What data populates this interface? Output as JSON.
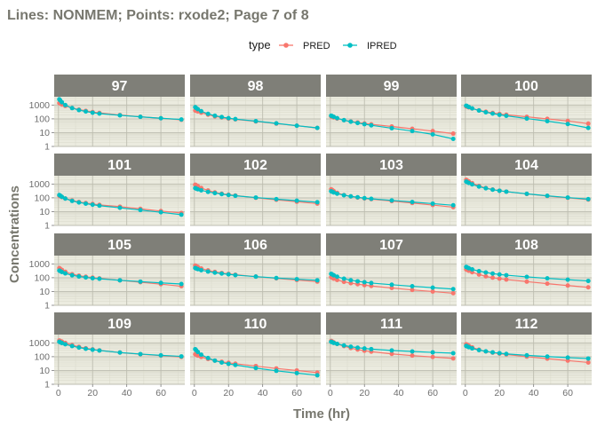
{
  "title": "Lines: NONMEM; Points: rxode2; Page 7 of 8",
  "xlabel": "Time (hr)",
  "ylabel": "Concentrations",
  "legend": {
    "title": "type",
    "position": "top-center",
    "items": [
      {
        "name": "PRED",
        "color": "#f8766d"
      },
      {
        "name": "IPRED",
        "color": "#00bfc4"
      }
    ]
  },
  "colors": {
    "strip_bg": "#7f7f78",
    "panel_bg": "#ebebdf",
    "grid_major": "#bdbdb0",
    "grid_minor": "#d9d9cb",
    "pred": "#f8766d",
    "ipred": "#00bfc4"
  },
  "chart_data": {
    "type": "line",
    "facet": "ID",
    "layout": {
      "rows": 4,
      "cols": 4
    },
    "x_label": "Time (hr)",
    "y_label": "Concentrations",
    "x_scale": "linear",
    "y_scale": "log10",
    "xlim": [
      -2.5,
      74
    ],
    "ylim": [
      1,
      4000
    ],
    "x_ticks": [
      0,
      20,
      40,
      60
    ],
    "y_ticks": [
      1,
      10,
      100,
      1000
    ],
    "y_tick_labels": [
      "1",
      "10",
      "100",
      "1000"
    ],
    "grid": true,
    "times": [
      0.5,
      1,
      2,
      4,
      8,
      12,
      16,
      20,
      24,
      36,
      48,
      60,
      72
    ],
    "panels": [
      {
        "id": "97",
        "series": [
          {
            "name": "PRED",
            "values": [
              1400,
              1300,
              1100,
              870,
              620,
              470,
              380,
              310,
              270,
              190,
              140,
              110,
              85
            ]
          },
          {
            "name": "IPRED",
            "values": [
              2600,
              2200,
              1600,
              1000,
              600,
              430,
              340,
              280,
              240,
              180,
              140,
              110,
              90
            ]
          }
        ]
      },
      {
        "id": "98",
        "series": [
          {
            "name": "PRED",
            "values": [
              400,
              380,
              340,
              280,
              200,
              150,
              125,
              105,
              92,
              65,
              45,
              32,
              22
            ]
          },
          {
            "name": "IPRED",
            "values": [
              700,
              620,
              500,
              360,
              230,
              170,
              135,
              112,
              96,
              68,
              47,
              32,
              22
            ]
          }
        ]
      },
      {
        "id": "99",
        "series": [
          {
            "name": "PRED",
            "values": [
              150,
              140,
              125,
              105,
              80,
              65,
              55,
              46,
              40,
              28,
              19,
              13,
              8.5
            ]
          },
          {
            "name": "IPRED",
            "values": [
              170,
              160,
              140,
              112,
              80,
              62,
              50,
              41,
              34,
              21,
              13,
              7.5,
              3.5
            ]
          }
        ]
      },
      {
        "id": "100",
        "series": [
          {
            "name": "PRED",
            "values": [
              800,
              760,
              680,
              560,
              420,
              330,
              270,
              225,
              200,
              140,
              100,
              70,
              45
            ]
          },
          {
            "name": "IPRED",
            "values": [
              900,
              830,
              720,
              570,
              400,
              300,
              240,
              195,
              165,
              105,
              68,
              42,
              22
            ]
          }
        ]
      },
      {
        "id": "101",
        "series": [
          {
            "name": "PRED",
            "values": [
              140,
              130,
              112,
              90,
              65,
              50,
              42,
              36,
              31,
              23,
              16,
              11,
              8
            ]
          },
          {
            "name": "IPRED",
            "values": [
              160,
              145,
              118,
              88,
              60,
              46,
              38,
              32,
              27,
              19,
              13,
              9,
              6
            ]
          }
        ]
      },
      {
        "id": "102",
        "series": [
          {
            "name": "PRED",
            "values": [
              900,
              830,
              700,
              520,
              340,
              250,
              200,
              170,
              148,
              100,
              72,
              52,
              38
            ]
          },
          {
            "name": "IPRED",
            "values": [
              500,
              470,
              420,
              350,
              270,
              220,
              185,
              160,
              140,
              105,
              80,
              62,
              48
            ]
          }
        ]
      },
      {
        "id": "103",
        "series": [
          {
            "name": "PRED",
            "values": [
              420,
              380,
              310,
              230,
              160,
              125,
              105,
              90,
              80,
              58,
              42,
              30,
              21
            ]
          },
          {
            "name": "IPRED",
            "values": [
              300,
              280,
              245,
              200,
              155,
              128,
              110,
              95,
              85,
              65,
              50,
              38,
              29
            ]
          }
        ]
      },
      {
        "id": "104",
        "series": [
          {
            "name": "PRED",
            "values": [
              2000,
              1850,
              1550,
              1150,
              730,
              520,
              400,
              330,
              280,
              190,
              135,
              100,
              75
            ]
          },
          {
            "name": "IPRED",
            "values": [
              1500,
              1400,
              1200,
              950,
              650,
              490,
              390,
              325,
              280,
              195,
              140,
              105,
              80
            ]
          }
        ]
      },
      {
        "id": "105",
        "series": [
          {
            "name": "PRED",
            "values": [
              500,
              450,
              370,
              270,
              180,
              140,
              118,
              102,
              90,
              65,
              47,
              34,
              24
            ]
          },
          {
            "name": "IPRED",
            "values": [
              330,
              305,
              260,
              205,
              150,
              122,
              105,
              92,
              83,
              65,
              52,
              42,
              35
            ]
          }
        ]
      },
      {
        "id": "106",
        "series": [
          {
            "name": "PRED",
            "values": [
              750,
              700,
              600,
              470,
              340,
              265,
              220,
              190,
              165,
              120,
              90,
              68,
              52
            ]
          },
          {
            "name": "IPRED",
            "values": [
              500,
              470,
              420,
              350,
              280,
              230,
              200,
              175,
              155,
              120,
              95,
              78,
              65
            ]
          }
        ]
      },
      {
        "id": "107",
        "series": [
          {
            "name": "PRED",
            "values": [
              110,
              100,
              85,
              68,
              50,
              40,
              34,
              29,
              25,
              18,
              13,
              10,
              7.5
            ]
          },
          {
            "name": "IPRED",
            "values": [
              190,
              175,
              150,
              118,
              85,
              66,
              55,
              47,
              41,
              31,
              24,
              19,
              15
            ]
          }
        ]
      },
      {
        "id": "108",
        "series": [
          {
            "name": "PRED",
            "values": [
              400,
              370,
              320,
              250,
              170,
              125,
              100,
              85,
              74,
              52,
              37,
              27,
              20
            ]
          },
          {
            "name": "IPRED",
            "values": [
              600,
              560,
              490,
              400,
              300,
              240,
              200,
              172,
              152,
              115,
              90,
              72,
              58
            ]
          }
        ]
      },
      {
        "id": "109",
        "series": [
          {
            "name": "PRED",
            "values": [
              1500,
              1400,
              1250,
              1000,
              700,
              520,
              410,
              340,
              290,
              200,
              150,
              120,
              95
            ]
          },
          {
            "name": "IPRED",
            "values": [
              1200,
              1120,
              980,
              800,
              590,
              460,
              375,
              320,
              280,
              200,
              155,
              125,
              105
            ]
          }
        ]
      },
      {
        "id": "110",
        "series": [
          {
            "name": "PRED",
            "values": [
              150,
              140,
              120,
              95,
              68,
              52,
              43,
              36,
              31,
              21,
              14,
              10,
              7
            ]
          },
          {
            "name": "IPRED",
            "values": [
              350,
              300,
              220,
              140,
              80,
              52,
              38,
              30,
              25,
              15,
              9.5,
              6.5,
              4.5
            ]
          }
        ]
      },
      {
        "id": "111",
        "series": [
          {
            "name": "PRED",
            "values": [
              1400,
              1300,
              1100,
              850,
              580,
              420,
              330,
              270,
              230,
              160,
              120,
              95,
              75
            ]
          },
          {
            "name": "IPRED",
            "values": [
              1200,
              1130,
              1000,
              840,
              650,
              530,
              450,
              395,
              355,
              285,
              240,
              205,
              180
            ]
          }
        ]
      },
      {
        "id": "112",
        "series": [
          {
            "name": "PRED",
            "values": [
              800,
              740,
              630,
              480,
              320,
              240,
              195,
              165,
              145,
              100,
              72,
              52,
              38
            ]
          },
          {
            "name": "IPRED",
            "values": [
              600,
              560,
              490,
              400,
              300,
              245,
              205,
              180,
              160,
              125,
              102,
              86,
              74
            ]
          }
        ]
      }
    ]
  }
}
